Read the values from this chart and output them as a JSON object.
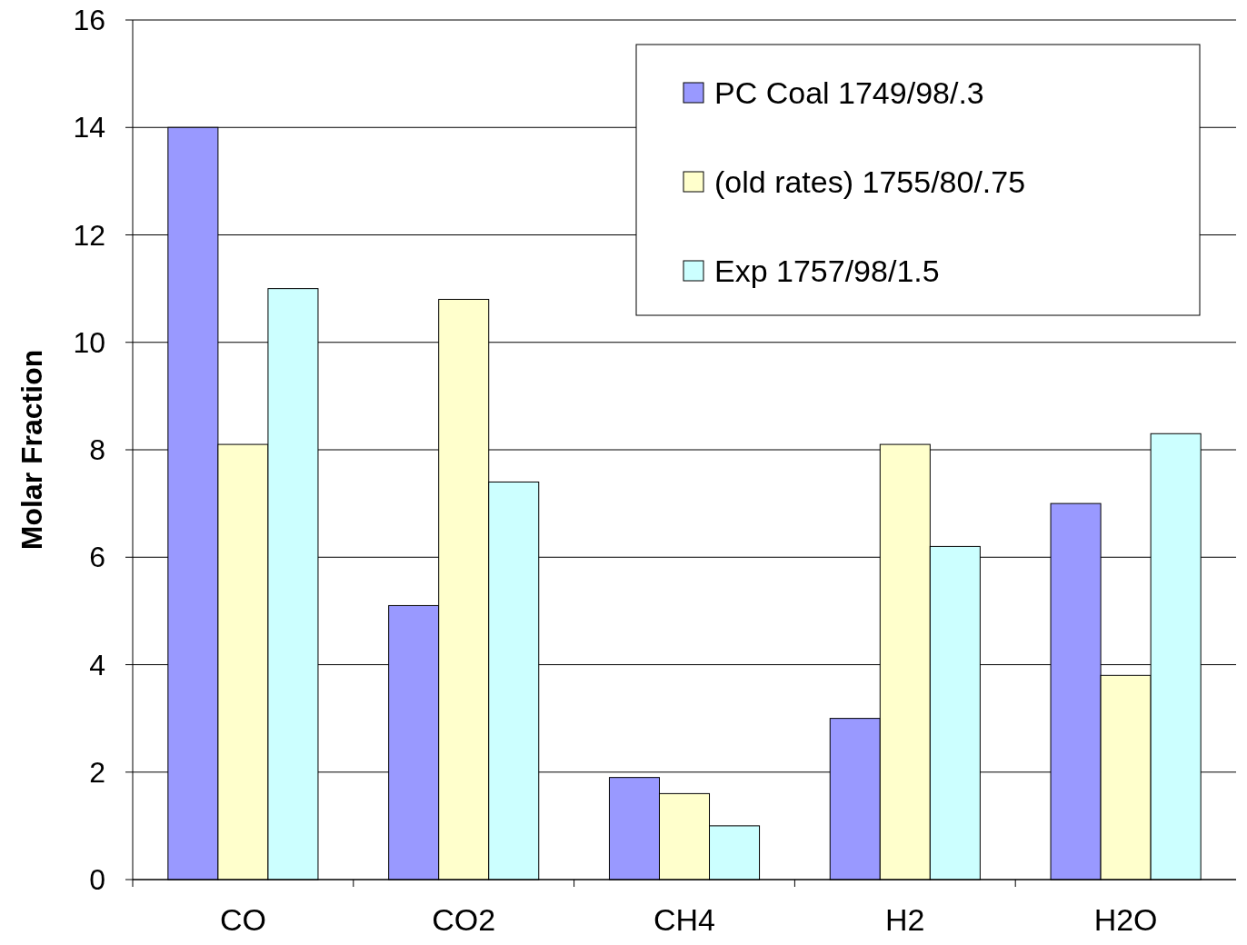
{
  "chart_data": {
    "type": "bar",
    "ylabel": "Molar Fraction",
    "categories": [
      "CO",
      "CO2",
      "CH4",
      "H2",
      "H2O"
    ],
    "series": [
      {
        "name": "PC Coal 1749/98/.3",
        "color": "#9999ff",
        "values": [
          14,
          5.1,
          1.9,
          3.0,
          7.0
        ]
      },
      {
        "name": "(old rates) 1755/80/.75",
        "color": "#ffffcc",
        "values": [
          8.1,
          10.8,
          1.6,
          8.1,
          3.8
        ]
      },
      {
        "name": "Exp 1757/98/1.5",
        "color": "#ccffff",
        "values": [
          11,
          7.4,
          1.0,
          6.2,
          8.3
        ]
      }
    ],
    "ylim": [
      0,
      16
    ],
    "yticks": [
      0,
      2,
      4,
      6,
      8,
      10,
      12,
      14,
      16
    ],
    "grid": "y",
    "legend": "top right"
  }
}
